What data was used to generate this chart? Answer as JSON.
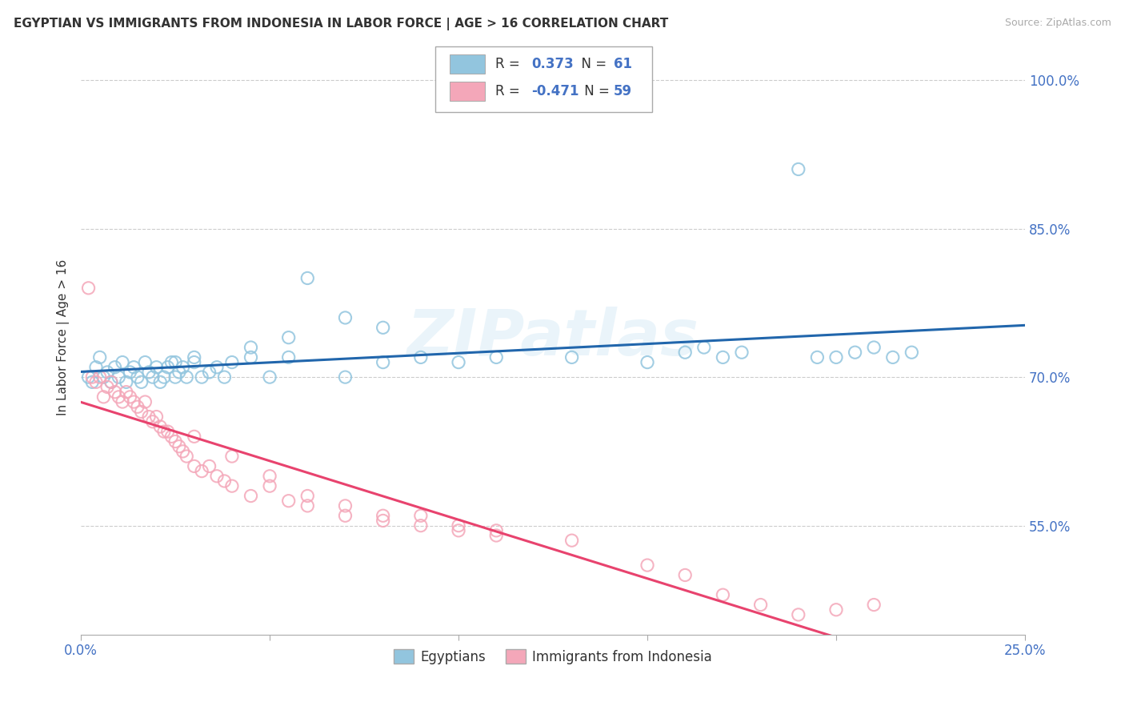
{
  "title": "EGYPTIAN VS IMMIGRANTS FROM INDONESIA IN LABOR FORCE | AGE > 16 CORRELATION CHART",
  "source": "Source: ZipAtlas.com",
  "ylabel": "In Labor Force | Age > 16",
  "y_ticks": [
    0.55,
    0.7,
    0.85,
    1.0
  ],
  "y_tick_labels": [
    "55.0%",
    "70.0%",
    "85.0%",
    "100.0%"
  ],
  "xlim": [
    0.0,
    0.25
  ],
  "ylim": [
    0.44,
    1.04
  ],
  "color_blue": "#92c5de",
  "color_pink": "#f4a7b9",
  "trendline_blue": "#2166ac",
  "trendline_pink": "#e8436e",
  "background_color": "#ffffff",
  "grid_color": "#cccccc",
  "blue_x": [
    0.002,
    0.003,
    0.004,
    0.005,
    0.006,
    0.007,
    0.008,
    0.009,
    0.01,
    0.011,
    0.012,
    0.013,
    0.014,
    0.015,
    0.016,
    0.017,
    0.018,
    0.019,
    0.02,
    0.021,
    0.022,
    0.023,
    0.024,
    0.025,
    0.026,
    0.027,
    0.028,
    0.03,
    0.032,
    0.034,
    0.036,
    0.038,
    0.04,
    0.045,
    0.05,
    0.055,
    0.06,
    0.07,
    0.08,
    0.09,
    0.1,
    0.11,
    0.13,
    0.15,
    0.16,
    0.165,
    0.17,
    0.175,
    0.19,
    0.195,
    0.2,
    0.205,
    0.21,
    0.215,
    0.22,
    0.07,
    0.08,
    0.055,
    0.045,
    0.03,
    0.025
  ],
  "blue_y": [
    0.7,
    0.695,
    0.71,
    0.72,
    0.7,
    0.705,
    0.695,
    0.71,
    0.7,
    0.715,
    0.695,
    0.705,
    0.71,
    0.7,
    0.695,
    0.715,
    0.705,
    0.7,
    0.71,
    0.695,
    0.7,
    0.71,
    0.715,
    0.7,
    0.705,
    0.71,
    0.7,
    0.715,
    0.7,
    0.705,
    0.71,
    0.7,
    0.715,
    0.72,
    0.7,
    0.72,
    0.8,
    0.7,
    0.715,
    0.72,
    0.715,
    0.72,
    0.72,
    0.715,
    0.725,
    0.73,
    0.72,
    0.725,
    0.91,
    0.72,
    0.72,
    0.725,
    0.73,
    0.72,
    0.725,
    0.76,
    0.75,
    0.74,
    0.73,
    0.72,
    0.715
  ],
  "pink_x": [
    0.002,
    0.003,
    0.004,
    0.005,
    0.006,
    0.007,
    0.008,
    0.009,
    0.01,
    0.011,
    0.012,
    0.013,
    0.014,
    0.015,
    0.016,
    0.017,
    0.018,
    0.019,
    0.02,
    0.021,
    0.022,
    0.023,
    0.024,
    0.025,
    0.026,
    0.027,
    0.028,
    0.03,
    0.032,
    0.034,
    0.036,
    0.038,
    0.04,
    0.045,
    0.05,
    0.055,
    0.06,
    0.07,
    0.08,
    0.09,
    0.1,
    0.11,
    0.13,
    0.15,
    0.16,
    0.17,
    0.18,
    0.19,
    0.2,
    0.21,
    0.03,
    0.04,
    0.05,
    0.06,
    0.07,
    0.08,
    0.09,
    0.1,
    0.11
  ],
  "pink_y": [
    0.79,
    0.7,
    0.695,
    0.7,
    0.68,
    0.69,
    0.695,
    0.685,
    0.68,
    0.675,
    0.685,
    0.68,
    0.675,
    0.67,
    0.665,
    0.675,
    0.66,
    0.655,
    0.66,
    0.65,
    0.645,
    0.645,
    0.64,
    0.635,
    0.63,
    0.625,
    0.62,
    0.61,
    0.605,
    0.61,
    0.6,
    0.595,
    0.59,
    0.58,
    0.59,
    0.575,
    0.57,
    0.56,
    0.555,
    0.55,
    0.545,
    0.54,
    0.535,
    0.51,
    0.5,
    0.48,
    0.47,
    0.46,
    0.465,
    0.47,
    0.64,
    0.62,
    0.6,
    0.58,
    0.57,
    0.56,
    0.56,
    0.55,
    0.545
  ]
}
